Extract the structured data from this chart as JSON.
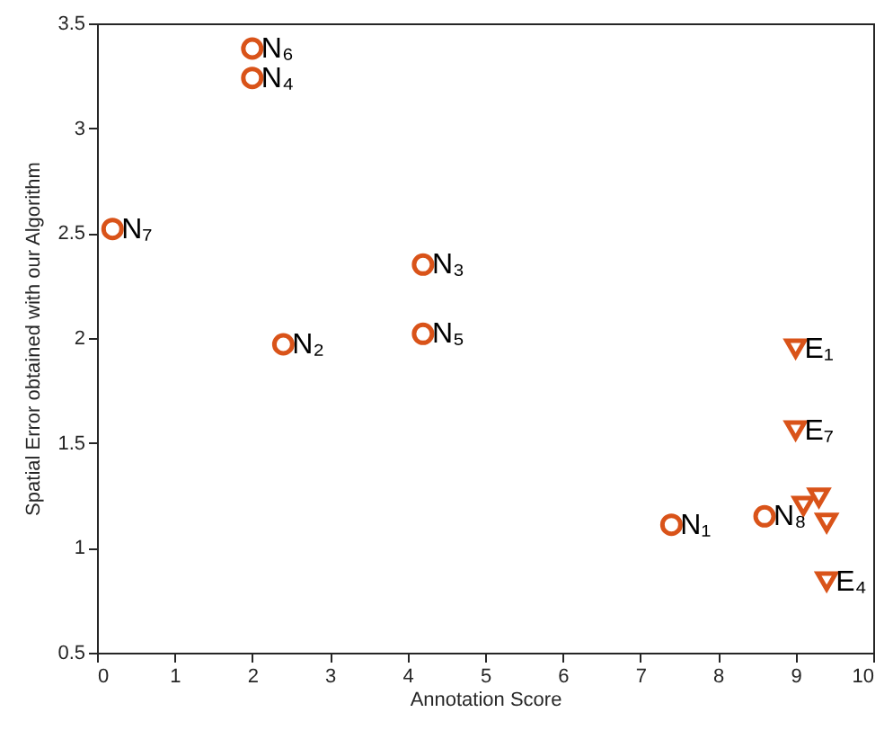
{
  "chart_data": {
    "type": "scatter",
    "xlabel": "Annotation Score",
    "ylabel": "Spatial Error obtained with our Algorithm",
    "xlim": [
      0,
      10
    ],
    "ylim": [
      0.5,
      3.5
    ],
    "xticks": [
      0,
      1,
      2,
      3,
      4,
      5,
      6,
      7,
      8,
      9,
      10
    ],
    "yticks": [
      0.5,
      1,
      1.5,
      2,
      2.5,
      3,
      3.5
    ],
    "grid": false,
    "series": [
      {
        "color": "#d95319",
        "marker": "circle",
        "x": [
          7.4,
          2.4,
          4.2,
          2.0,
          4.2,
          2.0,
          0.2,
          8.6
        ],
        "values": [
          1.11,
          1.97,
          2.35,
          3.24,
          2.02,
          3.38,
          2.52,
          1.15
        ]
      },
      {
        "color": "#d95319",
        "marker": "triangle",
        "x": [
          9.0,
          9.1,
          9.4,
          9.4,
          9.0,
          9.3
        ],
        "values": [
          1.95,
          1.2,
          0.84,
          1.12,
          1.56,
          1.24
        ]
      }
    ],
    "annotations": [
      {
        "text": "N₁",
        "x": 7.4,
        "y": 1.11
      },
      {
        "text": "N₂",
        "x": 2.4,
        "y": 1.97
      },
      {
        "text": "N₃",
        "x": 4.2,
        "y": 2.35
      },
      {
        "text": "N₄",
        "x": 2.0,
        "y": 3.24
      },
      {
        "text": "N₅",
        "x": 4.2,
        "y": 2.02
      },
      {
        "text": "N₆",
        "x": 2.0,
        "y": 3.38
      },
      {
        "text": "N₇",
        "x": 0.2,
        "y": 2.52
      },
      {
        "text": "N₈",
        "x": 8.6,
        "y": 1.15
      },
      {
        "text": "E₁",
        "x": 9.0,
        "y": 1.95
      },
      {
        "text": "E₄",
        "x": 9.4,
        "y": 0.84
      },
      {
        "text": "E₇",
        "x": 9.0,
        "y": 1.56
      }
    ]
  }
}
